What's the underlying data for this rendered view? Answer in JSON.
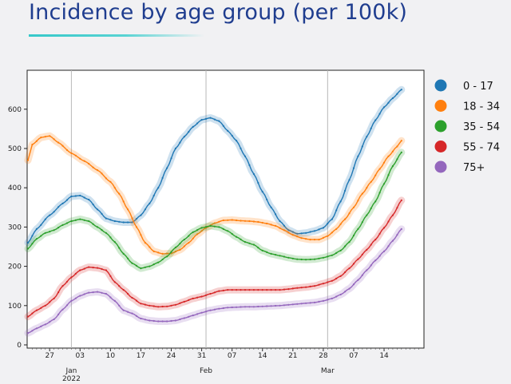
{
  "header": {
    "title": "Incidence by age group (per 100k)"
  },
  "chart_data": {
    "type": "line",
    "title": "Incidence by age group (per 100k)",
    "xlabel": "",
    "ylabel": "",
    "ylim": [
      0,
      700
    ],
    "yticks": [
      0,
      100,
      200,
      300,
      400,
      500,
      600
    ],
    "x_range_days": [
      0,
      91
    ],
    "x_ticks": [
      {
        "label": "27",
        "day": 5
      },
      {
        "label": "03",
        "day": 12
      },
      {
        "label": "10",
        "day": 19
      },
      {
        "label": "17",
        "day": 26
      },
      {
        "label": "24",
        "day": 33
      },
      {
        "label": "31",
        "day": 40
      },
      {
        "label": "07",
        "day": 47
      },
      {
        "label": "14",
        "day": 54
      },
      {
        "label": "21",
        "day": 61
      },
      {
        "label": "28",
        "day": 68
      },
      {
        "label": "07",
        "day": 75
      },
      {
        "label": "14",
        "day": 82
      }
    ],
    "month_labels": [
      {
        "label": "Jan",
        "day": 10
      },
      {
        "label": "2022",
        "day": 10,
        "line": 2
      },
      {
        "label": "Feb",
        "day": 41
      },
      {
        "label": "Mar",
        "day": 69
      }
    ],
    "month_gridlines_day": [
      10,
      41,
      69
    ],
    "legend_position": "right",
    "series": [
      {
        "name": "0 - 17",
        "color": "#1f77b4",
        "points": [
          [
            0,
            260
          ],
          [
            2,
            295
          ],
          [
            5,
            330
          ],
          [
            8,
            360
          ],
          [
            10,
            378
          ],
          [
            12,
            380
          ],
          [
            14,
            370
          ],
          [
            16,
            345
          ],
          [
            18,
            322
          ],
          [
            20,
            315
          ],
          [
            22,
            312
          ],
          [
            24,
            312
          ],
          [
            26,
            330
          ],
          [
            28,
            360
          ],
          [
            30,
            400
          ],
          [
            32,
            450
          ],
          [
            34,
            500
          ],
          [
            36,
            530
          ],
          [
            38,
            555
          ],
          [
            40,
            573
          ],
          [
            42,
            578
          ],
          [
            44,
            570
          ],
          [
            46,
            545
          ],
          [
            48,
            520
          ],
          [
            50,
            480
          ],
          [
            52,
            435
          ],
          [
            54,
            390
          ],
          [
            56,
            350
          ],
          [
            58,
            315
          ],
          [
            60,
            292
          ],
          [
            62,
            283
          ],
          [
            64,
            285
          ],
          [
            66,
            290
          ],
          [
            68,
            298
          ],
          [
            70,
            320
          ],
          [
            72,
            365
          ],
          [
            74,
            420
          ],
          [
            76,
            480
          ],
          [
            78,
            530
          ],
          [
            80,
            572
          ],
          [
            82,
            605
          ],
          [
            84,
            628
          ],
          [
            86,
            650
          ]
        ]
      },
      {
        "name": "18 - 34",
        "color": "#ff7f0e",
        "points": [
          [
            0,
            470
          ],
          [
            1,
            510
          ],
          [
            3,
            528
          ],
          [
            5,
            532
          ],
          [
            7,
            515
          ],
          [
            10,
            488
          ],
          [
            13,
            468
          ],
          [
            16,
            445
          ],
          [
            19,
            415
          ],
          [
            21,
            385
          ],
          [
            23,
            345
          ],
          [
            25,
            300
          ],
          [
            27,
            260
          ],
          [
            29,
            238
          ],
          [
            31,
            232
          ],
          [
            33,
            233
          ],
          [
            35,
            242
          ],
          [
            37,
            260
          ],
          [
            39,
            282
          ],
          [
            41,
            298
          ],
          [
            43,
            310
          ],
          [
            45,
            317
          ],
          [
            47,
            318
          ],
          [
            49,
            316
          ],
          [
            51,
            315
          ],
          [
            53,
            313
          ],
          [
            55,
            309
          ],
          [
            57,
            303
          ],
          [
            59,
            292
          ],
          [
            61,
            280
          ],
          [
            63,
            272
          ],
          [
            65,
            268
          ],
          [
            67,
            268
          ],
          [
            69,
            277
          ],
          [
            71,
            295
          ],
          [
            73,
            320
          ],
          [
            75,
            350
          ],
          [
            77,
            385
          ],
          [
            79,
            415
          ],
          [
            81,
            448
          ],
          [
            83,
            480
          ],
          [
            85,
            505
          ],
          [
            86,
            520
          ]
        ]
      },
      {
        "name": "35 - 54",
        "color": "#2ca02c",
        "points": [
          [
            0,
            245
          ],
          [
            2,
            270
          ],
          [
            4,
            285
          ],
          [
            6,
            292
          ],
          [
            8,
            305
          ],
          [
            10,
            315
          ],
          [
            12,
            320
          ],
          [
            14,
            315
          ],
          [
            16,
            300
          ],
          [
            18,
            285
          ],
          [
            20,
            262
          ],
          [
            22,
            232
          ],
          [
            24,
            208
          ],
          [
            26,
            195
          ],
          [
            28,
            200
          ],
          [
            30,
            210
          ],
          [
            32,
            225
          ],
          [
            34,
            248
          ],
          [
            36,
            268
          ],
          [
            38,
            287
          ],
          [
            40,
            298
          ],
          [
            42,
            303
          ],
          [
            44,
            300
          ],
          [
            46,
            290
          ],
          [
            48,
            275
          ],
          [
            50,
            262
          ],
          [
            52,
            255
          ],
          [
            54,
            240
          ],
          [
            56,
            232
          ],
          [
            58,
            227
          ],
          [
            60,
            222
          ],
          [
            62,
            218
          ],
          [
            64,
            217
          ],
          [
            66,
            218
          ],
          [
            68,
            222
          ],
          [
            70,
            228
          ],
          [
            72,
            240
          ],
          [
            74,
            262
          ],
          [
            76,
            295
          ],
          [
            78,
            330
          ],
          [
            80,
            365
          ],
          [
            82,
            410
          ],
          [
            84,
            455
          ],
          [
            86,
            490
          ]
        ]
      },
      {
        "name": "55 - 74",
        "color": "#d62728",
        "points": [
          [
            0,
            72
          ],
          [
            2,
            88
          ],
          [
            4,
            100
          ],
          [
            6,
            118
          ],
          [
            8,
            150
          ],
          [
            10,
            172
          ],
          [
            12,
            190
          ],
          [
            14,
            198
          ],
          [
            16,
            196
          ],
          [
            18,
            190
          ],
          [
            20,
            160
          ],
          [
            22,
            140
          ],
          [
            24,
            120
          ],
          [
            26,
            105
          ],
          [
            28,
            100
          ],
          [
            30,
            97
          ],
          [
            32,
            98
          ],
          [
            34,
            102
          ],
          [
            36,
            110
          ],
          [
            38,
            118
          ],
          [
            40,
            123
          ],
          [
            42,
            130
          ],
          [
            44,
            137
          ],
          [
            46,
            140
          ],
          [
            48,
            140
          ],
          [
            50,
            140
          ],
          [
            52,
            140
          ],
          [
            54,
            140
          ],
          [
            56,
            140
          ],
          [
            58,
            140
          ],
          [
            60,
            142
          ],
          [
            62,
            145
          ],
          [
            64,
            147
          ],
          [
            66,
            150
          ],
          [
            68,
            156
          ],
          [
            70,
            163
          ],
          [
            72,
            175
          ],
          [
            74,
            195
          ],
          [
            76,
            218
          ],
          [
            78,
            242
          ],
          [
            80,
            268
          ],
          [
            82,
            298
          ],
          [
            84,
            330
          ],
          [
            86,
            368
          ]
        ]
      },
      {
        "name": "75+",
        "color": "#9467bd",
        "points": [
          [
            0,
            30
          ],
          [
            2,
            42
          ],
          [
            4,
            52
          ],
          [
            6,
            65
          ],
          [
            8,
            90
          ],
          [
            10,
            112
          ],
          [
            12,
            125
          ],
          [
            14,
            133
          ],
          [
            16,
            135
          ],
          [
            18,
            130
          ],
          [
            20,
            112
          ],
          [
            22,
            88
          ],
          [
            24,
            80
          ],
          [
            26,
            67
          ],
          [
            28,
            62
          ],
          [
            30,
            60
          ],
          [
            32,
            60
          ],
          [
            34,
            62
          ],
          [
            36,
            68
          ],
          [
            38,
            75
          ],
          [
            40,
            82
          ],
          [
            42,
            88
          ],
          [
            44,
            92
          ],
          [
            46,
            95
          ],
          [
            48,
            96
          ],
          [
            50,
            97
          ],
          [
            52,
            97
          ],
          [
            54,
            98
          ],
          [
            56,
            99
          ],
          [
            58,
            100
          ],
          [
            60,
            102
          ],
          [
            62,
            104
          ],
          [
            64,
            106
          ],
          [
            66,
            108
          ],
          [
            68,
            112
          ],
          [
            70,
            118
          ],
          [
            72,
            128
          ],
          [
            74,
            143
          ],
          [
            76,
            165
          ],
          [
            78,
            190
          ],
          [
            80,
            215
          ],
          [
            82,
            238
          ],
          [
            84,
            265
          ],
          [
            86,
            295
          ]
        ]
      }
    ]
  }
}
